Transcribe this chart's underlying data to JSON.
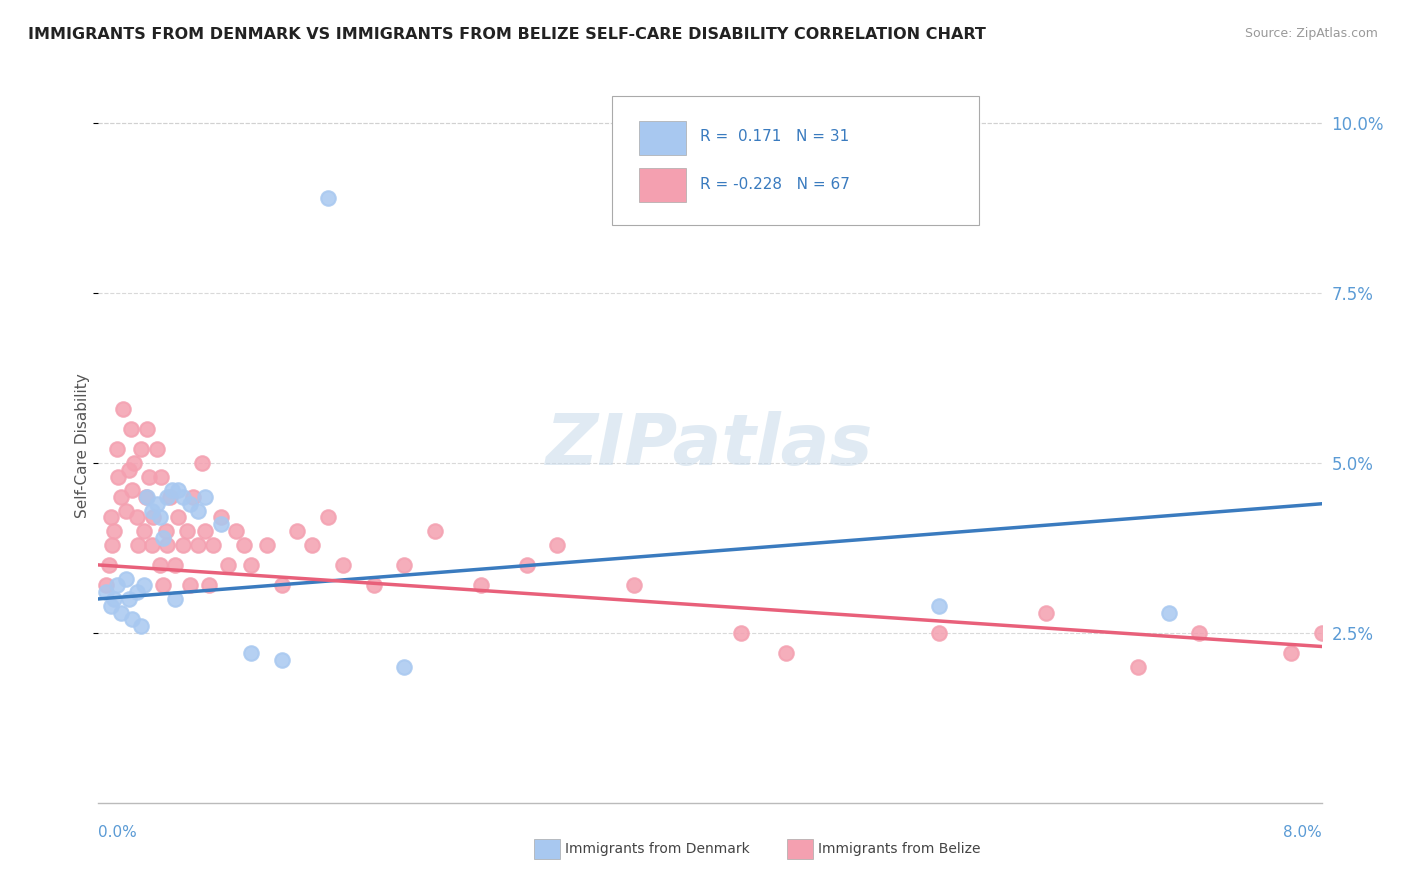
{
  "title": "IMMIGRANTS FROM DENMARK VS IMMIGRANTS FROM BELIZE SELF-CARE DISABILITY CORRELATION CHART",
  "source": "Source: ZipAtlas.com",
  "ylabel": "Self-Care Disability",
  "xlim": [
    0.0,
    8.0
  ],
  "ylim": [
    0.0,
    10.5
  ],
  "plot_ylim": [
    0.0,
    10.5
  ],
  "yticks": [
    2.5,
    5.0,
    7.5,
    10.0
  ],
  "xticks": [
    0.0,
    1.0,
    2.0,
    3.0,
    4.0,
    5.0,
    6.0,
    7.0,
    8.0
  ],
  "denmark_R": 0.171,
  "denmark_N": 31,
  "belize_R": -0.228,
  "belize_N": 67,
  "denmark_color": "#a8c8f0",
  "belize_color": "#f4a0b0",
  "denmark_line_color": "#3a7bbf",
  "belize_line_color": "#e8607a",
  "legend_R_color": "#3a7bbf",
  "watermark_color": "#c8daea",
  "denmark_line_x0": 0.0,
  "denmark_line_y0": 3.0,
  "denmark_line_x1": 8.0,
  "denmark_line_y1": 4.4,
  "belize_line_x0": 0.0,
  "belize_line_y0": 3.5,
  "belize_line_x1": 8.0,
  "belize_line_y1": 2.3,
  "denmark_x": [
    0.05,
    0.08,
    0.1,
    0.12,
    0.15,
    0.18,
    0.2,
    0.22,
    0.25,
    0.28,
    0.3,
    0.32,
    0.35,
    0.38,
    0.4,
    0.42,
    0.45,
    0.48,
    0.5,
    0.52,
    0.55,
    0.6,
    0.65,
    0.7,
    0.8,
    1.0,
    1.2,
    1.5,
    2.0,
    5.5,
    7.0
  ],
  "denmark_y": [
    3.1,
    2.9,
    3.0,
    3.2,
    2.8,
    3.3,
    3.0,
    2.7,
    3.1,
    2.6,
    3.2,
    4.5,
    4.3,
    4.4,
    4.2,
    3.9,
    4.5,
    4.6,
    3.0,
    4.6,
    4.5,
    4.4,
    4.3,
    4.5,
    4.1,
    2.2,
    2.1,
    8.9,
    2.0,
    2.9,
    2.8
  ],
  "belize_x": [
    0.05,
    0.07,
    0.08,
    0.09,
    0.1,
    0.12,
    0.13,
    0.15,
    0.16,
    0.18,
    0.2,
    0.21,
    0.22,
    0.23,
    0.25,
    0.26,
    0.28,
    0.3,
    0.31,
    0.32,
    0.33,
    0.35,
    0.36,
    0.38,
    0.4,
    0.41,
    0.42,
    0.44,
    0.45,
    0.47,
    0.5,
    0.52,
    0.55,
    0.58,
    0.6,
    0.62,
    0.65,
    0.68,
    0.7,
    0.72,
    0.75,
    0.8,
    0.85,
    0.9,
    0.95,
    1.0,
    1.1,
    1.2,
    1.3,
    1.4,
    1.5,
    1.6,
    1.8,
    2.0,
    2.2,
    2.5,
    2.8,
    3.0,
    3.5,
    4.2,
    4.5,
    5.5,
    6.2,
    6.8,
    7.2,
    7.8,
    8.0
  ],
  "belize_y": [
    3.2,
    3.5,
    4.2,
    3.8,
    4.0,
    5.2,
    4.8,
    4.5,
    5.8,
    4.3,
    4.9,
    5.5,
    4.6,
    5.0,
    4.2,
    3.8,
    5.2,
    4.0,
    4.5,
    5.5,
    4.8,
    3.8,
    4.2,
    5.2,
    3.5,
    4.8,
    3.2,
    4.0,
    3.8,
    4.5,
    3.5,
    4.2,
    3.8,
    4.0,
    3.2,
    4.5,
    3.8,
    5.0,
    4.0,
    3.2,
    3.8,
    4.2,
    3.5,
    4.0,
    3.8,
    3.5,
    3.8,
    3.2,
    4.0,
    3.8,
    4.2,
    3.5,
    3.2,
    3.5,
    4.0,
    3.2,
    3.5,
    3.8,
    3.2,
    2.5,
    2.2,
    2.5,
    2.8,
    2.0,
    2.5,
    2.2,
    2.5
  ]
}
